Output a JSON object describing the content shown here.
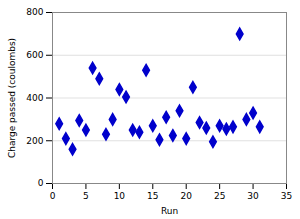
{
  "chart_data": {
    "type": "scatter",
    "x": [
      1,
      2,
      3,
      4,
      5,
      6,
      7,
      8,
      9,
      10,
      11,
      12,
      13,
      14,
      15,
      16,
      17,
      18,
      19,
      20,
      21,
      22,
      23,
      24,
      25,
      26,
      27,
      28,
      29,
      30,
      31
    ],
    "values": [
      280,
      210,
      160,
      295,
      250,
      540,
      490,
      230,
      300,
      440,
      405,
      250,
      240,
      530,
      270,
      205,
      310,
      225,
      340,
      210,
      450,
      285,
      260,
      195,
      270,
      255,
      265,
      700,
      300,
      330,
      265
    ],
    "color": "#0000CC",
    "marker": "diamond",
    "xlabel": "Run",
    "ylabel": "Charge passed (coulombs)",
    "xlim": [
      0,
      35
    ],
    "ylim": [
      0,
      800
    ],
    "xticks": [
      0,
      5,
      10,
      15,
      20,
      25,
      30,
      35
    ],
    "yticks": [
      0,
      200,
      400,
      600,
      800
    ],
    "grid": true
  }
}
